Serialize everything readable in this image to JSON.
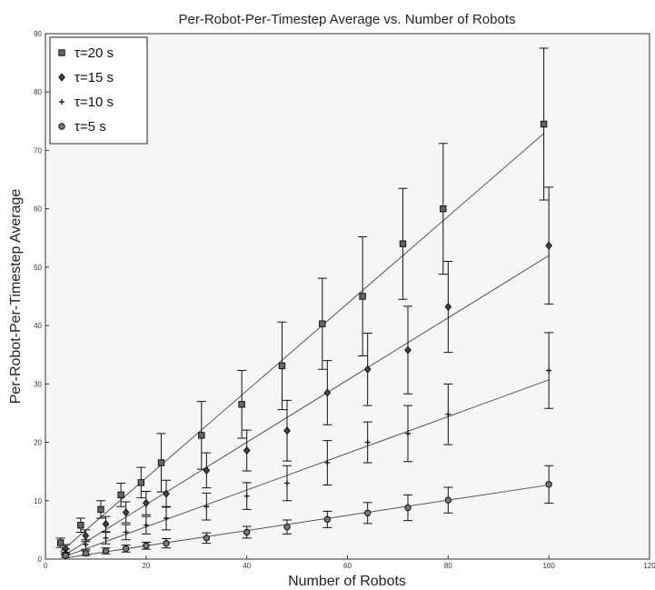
{
  "chart_data": {
    "type": "scatter",
    "title": "Per-Robot-Per-Timestep Average vs. Number of Robots",
    "xlabel": "Number of Robots",
    "ylabel": "Per-Robot-Per-Timestep Average",
    "xlim": [
      0,
      120
    ],
    "ylim": [
      0,
      90
    ],
    "xticks": [
      0,
      20,
      40,
      60,
      80,
      100,
      120
    ],
    "yticks": [
      0,
      10,
      20,
      30,
      40,
      50,
      60,
      70,
      80,
      90
    ],
    "grid": false,
    "legend_position": "top-left",
    "series": [
      {
        "name": "τ=20 s",
        "marker": "square",
        "x": [
          3,
          7,
          11,
          15,
          19,
          23,
          31,
          39,
          47,
          55,
          63,
          71,
          79,
          99
        ],
        "y": [
          2.8,
          5.8,
          8.5,
          11.0,
          13.1,
          16.5,
          21.2,
          26.5,
          33.1,
          40.3,
          45.0,
          54.0,
          60.0,
          74.5
        ],
        "err": [
          0.8,
          1.2,
          1.5,
          2.0,
          2.6,
          5.0,
          5.8,
          5.8,
          7.5,
          7.8,
          10.2,
          9.5,
          11.2,
          13.0
        ],
        "fit": [
          1.2,
          72.9
        ]
      },
      {
        "name": "τ=15 s",
        "marker": "diamond",
        "x": [
          4,
          8,
          12,
          16,
          20,
          24,
          32,
          40,
          48,
          56,
          64,
          72,
          80,
          100
        ],
        "y": [
          1.8,
          4.0,
          6.0,
          8.0,
          9.6,
          11.2,
          15.2,
          18.6,
          22.0,
          28.5,
          32.5,
          35.8,
          43.2,
          53.7
        ],
        "err": [
          0.7,
          1.0,
          1.3,
          1.8,
          2.0,
          2.3,
          3.0,
          3.5,
          5.2,
          5.5,
          6.2,
          7.5,
          7.8,
          10.0
        ],
        "fit": [
          0.8,
          52.0
        ]
      },
      {
        "name": "τ=10 s",
        "marker": "plus",
        "x": [
          4,
          8,
          12,
          16,
          20,
          24,
          32,
          40,
          48,
          56,
          64,
          72,
          80,
          100
        ],
        "y": [
          1.2,
          2.5,
          3.6,
          4.6,
          5.8,
          7.0,
          9.0,
          10.8,
          13.0,
          16.5,
          20.0,
          21.5,
          24.8,
          32.3
        ],
        "err": [
          0.5,
          0.8,
          1.0,
          1.3,
          1.5,
          2.0,
          2.3,
          2.3,
          3.0,
          3.8,
          3.5,
          4.8,
          5.2,
          6.5
        ],
        "fit": [
          0.5,
          30.7
        ]
      },
      {
        "name": "τ=5 s",
        "marker": "circle",
        "x": [
          4,
          8,
          12,
          16,
          20,
          24,
          32,
          40,
          48,
          56,
          64,
          72,
          80,
          100
        ],
        "y": [
          0.6,
          1.0,
          1.4,
          1.8,
          2.3,
          2.7,
          3.6,
          4.6,
          5.5,
          6.8,
          7.9,
          8.8,
          10.1,
          12.8
        ],
        "err": [
          0.3,
          0.4,
          0.5,
          0.6,
          0.6,
          0.8,
          0.9,
          1.0,
          1.2,
          1.4,
          1.8,
          2.2,
          2.2,
          3.2
        ],
        "fit": [
          0.2,
          12.7
        ]
      }
    ]
  }
}
